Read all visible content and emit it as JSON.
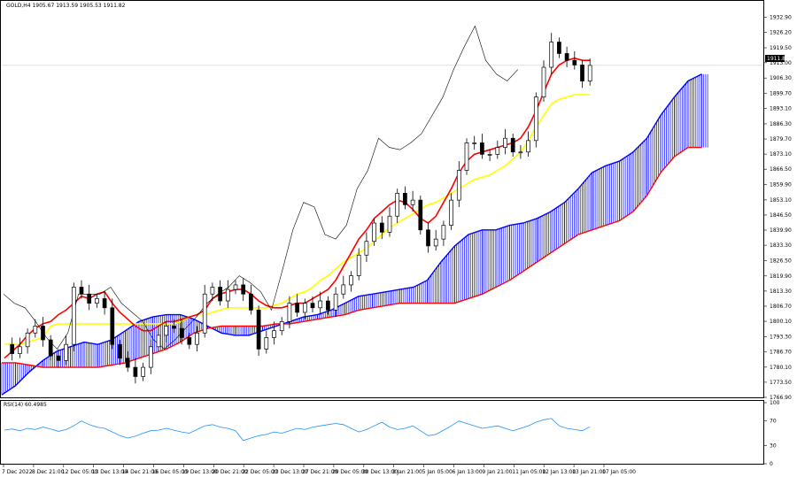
{
  "header": {
    "main_title": "GOLD,H4  1905.67 1913.59 1905.53 1911.82",
    "rsi_title": "RSI(14) 60.4985"
  },
  "price_tag": "1911.82",
  "colors": {
    "background": "#ffffff",
    "candle": "#000000",
    "tenkan": "#ff0000",
    "kijun": "#ffff00",
    "chikou": "#000000",
    "senkou_a": "#0000ff",
    "senkou_b": "#ff0000",
    "cloud_hatch": "#0000ff",
    "rsi": "#1e90ff",
    "grid": "#c0c0c0"
  },
  "chart_data": [
    {
      "type": "candlestick",
      "symbol": "GOLD",
      "timeframe": "H4",
      "title": "GOLD,H4 1905.67 1913.59 1905.53 1911.82",
      "ylim": [
        1766.9,
        1936.5
      ],
      "y_ticks": [
        "1932.90",
        "1926.20",
        "1919.50",
        "1913.00",
        "1906.30",
        "1899.70",
        "1893.10",
        "1886.30",
        "1879.70",
        "1873.10",
        "1866.50",
        "1859.90",
        "1853.10",
        "1846.50",
        "1839.90",
        "1833.30",
        "1826.50",
        "1819.90",
        "1813.30",
        "1806.70",
        "1800.10",
        "1793.30",
        "1786.70",
        "1780.10",
        "1773.50",
        "1766.90"
      ],
      "x_ticks": [
        "7 Dec 2022",
        "8 Dec 21:00",
        "12 Dec 05:00",
        "13 Dec 13:00",
        "14 Dec 21:00",
        "16 Dec 05:00",
        "19 Dec 13:00",
        "20 Dec 21:00",
        "22 Dec 05:00",
        "23 Dec 13:00",
        "27 Dec 21:00",
        "29 Dec 05:00",
        "30 Dec 13:00",
        "3 Jan 21:00",
        "5 Jan 05:00",
        "6 Jan 13:00",
        "9 Jan 21:00",
        "11 Jan 05:00",
        "12 Jan 13:00",
        "13 Jan 21:00",
        "17 Jan 05:00"
      ],
      "last_price": 1911.82,
      "ohlc_points": [
        1790,
        1786,
        1789,
        1795,
        1798,
        1792,
        1785,
        1783,
        1790,
        1815,
        1812,
        1808,
        1810,
        1806,
        1790,
        1784,
        1780,
        1776,
        1780,
        1789,
        1794,
        1798,
        1797,
        1793,
        1790,
        1795,
        1812,
        1815,
        1809,
        1814,
        1816,
        1812,
        1805,
        1788,
        1793,
        1796,
        1800,
        1808,
        1804,
        1808,
        1806,
        1809,
        1805,
        1812,
        1816,
        1820,
        1829,
        1835,
        1843,
        1839,
        1846,
        1856,
        1851,
        1853,
        1840,
        1833,
        1836,
        1842,
        1853,
        1866,
        1878,
        1878,
        1873,
        1873,
        1876,
        1880,
        1874,
        1874,
        1879,
        1898,
        1911,
        1922,
        1917,
        1914,
        1912,
        1905,
        1911.82
      ],
      "series": [
        {
          "name": "Tenkan-sen",
          "values": [
            1784,
            1787,
            1790,
            1794,
            1797,
            1799,
            1800,
            1803,
            1805,
            1808,
            1811,
            1810,
            1812,
            1813,
            1808,
            1804,
            1801,
            1798,
            1796,
            1796,
            1798,
            1800,
            1800,
            1801,
            1802,
            1803,
            1805,
            1810,
            1812,
            1813,
            1814,
            1814,
            1812,
            1809,
            1807,
            1806,
            1806,
            1807,
            1808,
            1808,
            1810,
            1812,
            1814,
            1818,
            1824,
            1830,
            1836,
            1840,
            1845,
            1848,
            1851,
            1853,
            1852,
            1849,
            1845,
            1843,
            1846,
            1852,
            1858,
            1865,
            1870,
            1873,
            1874,
            1875,
            1876,
            1877,
            1878,
            1880,
            1885,
            1892,
            1900,
            1908,
            1912,
            1914,
            1915,
            1914,
            1914
          ]
        },
        {
          "name": "Kijun-sen",
          "values": [
            1790,
            1790,
            1790,
            1791,
            1792,
            1793,
            1798,
            1799,
            1799,
            1799,
            1799,
            1799,
            1799,
            1799,
            1799,
            1799,
            1799,
            1799,
            1799,
            1799,
            1799,
            1799,
            1799,
            1800,
            1802,
            1803,
            1803,
            1804,
            1805,
            1806,
            1806,
            1806,
            1806,
            1806,
            1806,
            1807,
            1808,
            1810,
            1812,
            1813,
            1815,
            1818,
            1820,
            1823,
            1826,
            1828,
            1830,
            1832,
            1835,
            1838,
            1841,
            1843,
            1845,
            1847,
            1849,
            1851,
            1852,
            1854,
            1856,
            1858,
            1860,
            1862,
            1863,
            1864,
            1866,
            1868,
            1871,
            1874,
            1879,
            1885,
            1890,
            1895,
            1897,
            1898,
            1899,
            1899,
            1899
          ]
        },
        {
          "name": "Chikou Span",
          "values": [
            1812,
            1808,
            1806,
            1800,
            1793,
            1788,
            1795,
            1812,
            1812,
            1812,
            1815,
            1808,
            1804,
            1800,
            1792,
            1788,
            1792,
            1797,
            1802,
            1808,
            1812,
            1815,
            1820,
            1817,
            1813,
            1805,
            1822,
            1840,
            1852,
            1850,
            1838,
            1836,
            1842,
            1858,
            1866,
            1880,
            1876,
            1875,
            1878,
            1882,
            1890,
            1898,
            1910,
            1920,
            1929,
            1914,
            1908,
            1905,
            1910
          ]
        },
        {
          "name": "Senkou Span A",
          "values": [
            1768,
            1772,
            1778,
            1783,
            1787,
            1789,
            1791,
            1790,
            1792,
            1796,
            1800,
            1802,
            1803,
            1803,
            1801,
            1798,
            1795,
            1794,
            1794,
            1796,
            1798,
            1800,
            1802,
            1803,
            1805,
            1808,
            1811,
            1812,
            1813,
            1814,
            1815,
            1818,
            1826,
            1833,
            1838,
            1840,
            1840,
            1842,
            1843,
            1845,
            1848,
            1852,
            1858,
            1865,
            1868,
            1870,
            1874,
            1880,
            1890,
            1898,
            1905,
            1908
          ]
        },
        {
          "name": "Senkou Span B",
          "values": [
            1782,
            1782,
            1781,
            1780,
            1780,
            1780,
            1780,
            1780,
            1781,
            1782,
            1784,
            1786,
            1788,
            1791,
            1795,
            1797,
            1798,
            1798,
            1798,
            1798,
            1799,
            1799,
            1800,
            1801,
            1802,
            1803,
            1805,
            1806,
            1807,
            1808,
            1808,
            1808,
            1808,
            1808,
            1810,
            1812,
            1815,
            1818,
            1822,
            1826,
            1830,
            1834,
            1838,
            1840,
            1842,
            1844,
            1848,
            1855,
            1865,
            1872,
            1876,
            1876
          ]
        }
      ]
    },
    {
      "type": "line",
      "title": "RSI(14) 60.4985",
      "ylim": [
        0,
        100
      ],
      "y_ticks": [
        "100",
        "70",
        "30",
        "0"
      ],
      "series": [
        {
          "name": "RSI(14)",
          "values": [
            55,
            57,
            54,
            58,
            56,
            60,
            57,
            53,
            56,
            62,
            70,
            64,
            60,
            58,
            52,
            46,
            42,
            45,
            50,
            54,
            55,
            58,
            55,
            52,
            50,
            56,
            62,
            64,
            60,
            58,
            54,
            38,
            42,
            46,
            48,
            52,
            50,
            54,
            58,
            56,
            60,
            62,
            64,
            66,
            64,
            58,
            52,
            56,
            62,
            68,
            60,
            56,
            58,
            62,
            54,
            46,
            48,
            55,
            62,
            70,
            66,
            62,
            58,
            60,
            62,
            58,
            54,
            58,
            62,
            68,
            72,
            74,
            62,
            58,
            56,
            54,
            60.5
          ]
        }
      ]
    }
  ]
}
